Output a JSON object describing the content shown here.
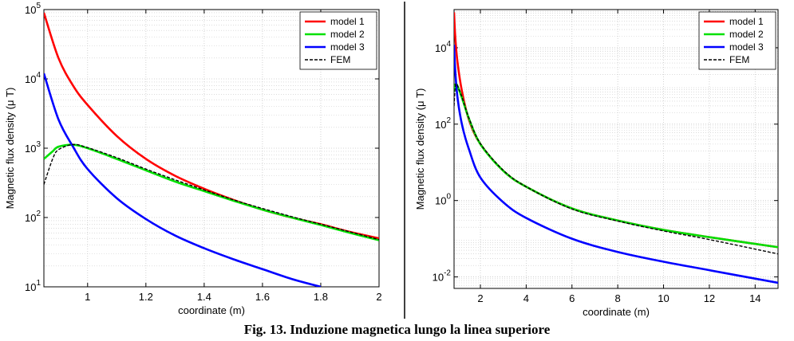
{
  "caption": "Fig. 13. Induzione magnetica lungo la linea superiore",
  "colors": {
    "model1": "#ff0000",
    "model2": "#00e000",
    "model3": "#0000ff",
    "fem": "#000000",
    "grid": "#c8c8c8"
  },
  "chart_data": [
    {
      "type": "line",
      "title": "",
      "xlabel": "coordinate (m)",
      "ylabel": "Magnetic flux density (μ T)",
      "xlim": [
        0.85,
        2.0
      ],
      "ylim": [
        10,
        100000
      ],
      "yscale": "log",
      "xticks": [
        1,
        1.2,
        1.4,
        1.6,
        1.8,
        2
      ],
      "xtick_labels": [
        "1",
        "1.2",
        "1.4",
        "1.6",
        "1.8",
        "2"
      ],
      "yticks": [
        10,
        100,
        1000,
        10000,
        100000
      ],
      "ytick_base": "10",
      "ytick_exponents": [
        "1",
        "2",
        "3",
        "4",
        "5"
      ],
      "grid": true,
      "legend_position": "top-right",
      "series": [
        {
          "name": "model 1",
          "style": "solid",
          "x": [
            0.85,
            0.9,
            0.95,
            1.0,
            1.1,
            1.2,
            1.3,
            1.4,
            1.5,
            1.6,
            1.7,
            1.8,
            1.9,
            2.0
          ],
          "y": [
            90000,
            20000,
            8000,
            4200,
            1500,
            700,
            400,
            260,
            180,
            130,
            100,
            80,
            62,
            50
          ]
        },
        {
          "name": "model 2",
          "style": "solid",
          "x": [
            0.85,
            0.88,
            0.9,
            0.95,
            1.0,
            1.1,
            1.2,
            1.3,
            1.4,
            1.5,
            1.6,
            1.7,
            1.8,
            1.9,
            2.0
          ],
          "y": [
            700,
            900,
            1050,
            1120,
            1000,
            700,
            480,
            330,
            240,
            175,
            130,
            100,
            78,
            60,
            47
          ]
        },
        {
          "name": "model 3",
          "style": "solid",
          "x": [
            0.85,
            0.9,
            0.95,
            1.0,
            1.1,
            1.2,
            1.3,
            1.4,
            1.5,
            1.6,
            1.7,
            1.8
          ],
          "y": [
            12000,
            2600,
            1050,
            500,
            190,
            95,
            55,
            36,
            25,
            18,
            13,
            10
          ]
        },
        {
          "name": "FEM",
          "style": "dashed",
          "x": [
            0.85,
            0.88,
            0.9,
            0.95,
            1.0,
            1.1,
            1.2,
            1.3,
            1.4,
            1.5,
            1.6,
            1.7,
            1.8,
            1.9,
            2.0
          ],
          "y": [
            300,
            700,
            950,
            1130,
            1020,
            730,
            500,
            350,
            250,
            180,
            135,
            103,
            80,
            62,
            48
          ]
        }
      ]
    },
    {
      "type": "line",
      "title": "",
      "xlabel": "coordinate (m)",
      "ylabel": "Magnetic flux density (μ T)",
      "xlim": [
        0.85,
        15
      ],
      "ylim": [
        0.005,
        100000
      ],
      "yscale": "log",
      "xticks": [
        2,
        4,
        6,
        8,
        10,
        12,
        14
      ],
      "xtick_labels": [
        "2",
        "4",
        "6",
        "8",
        "10",
        "12",
        "14"
      ],
      "yticks": [
        0.01,
        1,
        100,
        10000
      ],
      "ytick_base": "10",
      "ytick_exponents": [
        "-2",
        "0",
        "2",
        "4"
      ],
      "grid": true,
      "legend_position": "top-right",
      "series": [
        {
          "name": "model 1",
          "style": "solid",
          "x": [
            0.85,
            0.9,
            1.0,
            1.2,
            1.5,
            2,
            3,
            4,
            6,
            8,
            10,
            12,
            15
          ],
          "y": [
            85000,
            20000,
            4200,
            700,
            130,
            30,
            6,
            2.3,
            0.62,
            0.3,
            0.17,
            0.11,
            0.06
          ]
        },
        {
          "name": "model 2",
          "style": "solid",
          "x": [
            0.85,
            0.9,
            0.95,
            1.0,
            1.2,
            1.5,
            2,
            3,
            4,
            6,
            8,
            10,
            12,
            15
          ],
          "y": [
            700,
            1050,
            1120,
            1000,
            480,
            140,
            30,
            6,
            2.3,
            0.62,
            0.3,
            0.17,
            0.11,
            0.06
          ]
        },
        {
          "name": "model 3",
          "style": "solid",
          "x": [
            0.85,
            0.9,
            1.0,
            1.2,
            1.5,
            2,
            3,
            4,
            6,
            8,
            10,
            12,
            15
          ],
          "y": [
            12000,
            2600,
            500,
            95,
            22,
            4,
            0.9,
            0.35,
            0.1,
            0.045,
            0.025,
            0.015,
            0.007
          ]
        },
        {
          "name": "FEM",
          "style": "dashed",
          "x": [
            0.85,
            0.9,
            0.95,
            1.0,
            1.2,
            1.5,
            2,
            3,
            4,
            6,
            8,
            10,
            12,
            15
          ],
          "y": [
            300,
            950,
            1130,
            1020,
            500,
            145,
            31,
            6.2,
            2.3,
            0.6,
            0.29,
            0.16,
            0.095,
            0.04
          ]
        }
      ]
    }
  ]
}
